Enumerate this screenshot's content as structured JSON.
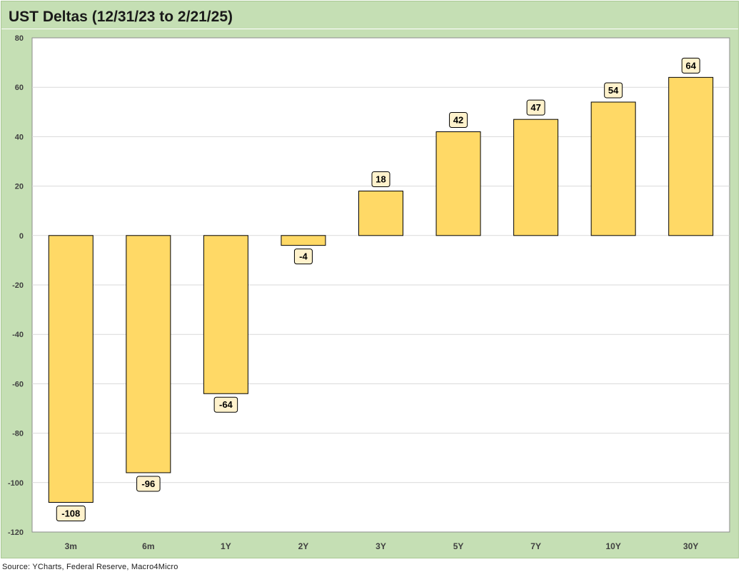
{
  "chart_data": {
    "type": "bar",
    "title": "UST Deltas (12/31/23 to 2/21/25)",
    "categories": [
      "3m",
      "6m",
      "1Y",
      "2Y",
      "3Y",
      "5Y",
      "7Y",
      "10Y",
      "30Y"
    ],
    "values": [
      -108,
      -96,
      -64,
      -4,
      18,
      42,
      47,
      54,
      64
    ],
    "data_labels": [
      "-108",
      "-96",
      "-64",
      "-4",
      "18",
      "42",
      "47",
      "54",
      "64"
    ],
    "ylim": [
      -120,
      80
    ],
    "yticks": [
      80,
      60,
      40,
      20,
      0,
      -20,
      -40,
      -60,
      -80,
      -100,
      -120
    ],
    "grid": true,
    "legend": "none",
    "bar_color": "#ffd966",
    "label_fill": "#fff2cc"
  },
  "source": "Source: YCharts, Federal Reserve, Macro4Micro",
  "colors": {
    "frame": "#c5dfb4",
    "plot_bg": "#ffffff",
    "gridline": "#d9d9d9"
  }
}
